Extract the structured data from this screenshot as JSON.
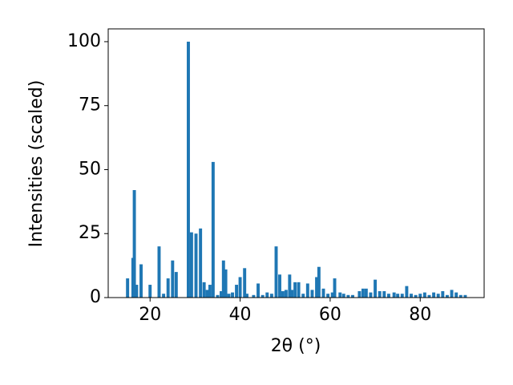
{
  "chart_data": {
    "type": "bar",
    "x_label": "2θ (°)",
    "y_label": "Intensities (scaled)",
    "color": "#1f77b4",
    "x": [
      15,
      16.2,
      16.5,
      17,
      18,
      20,
      22,
      23,
      24,
      25,
      25.8,
      28.5,
      29.2,
      30.2,
      31.2,
      32,
      32.7,
      33.3,
      34,
      35,
      35.8,
      36.3,
      36.8,
      37.5,
      38.3,
      39.2,
      40,
      41,
      41.5,
      43,
      44,
      45,
      46,
      47,
      48,
      48.8,
      49.5,
      50.2,
      51,
      51.5,
      52.2,
      53,
      54,
      55,
      56,
      57,
      57.5,
      58.5,
      59.5,
      60.5,
      61,
      62.2,
      63,
      64,
      65,
      66.5,
      67.3,
      68,
      69,
      70,
      71,
      72,
      73,
      74.2,
      75,
      76,
      77,
      78,
      79,
      80,
      81,
      82,
      83,
      84,
      85,
      86,
      87,
      88,
      89,
      90
    ],
    "values": [
      7.5,
      15.5,
      42,
      5,
      13,
      5,
      20,
      1.5,
      7.5,
      14.5,
      10,
      100,
      25.5,
      25,
      27,
      6,
      3,
      5,
      53,
      1,
      2.5,
      14.5,
      11,
      1.5,
      2,
      5,
      8,
      11.5,
      1.5,
      1,
      5.5,
      1,
      2,
      1.5,
      20,
      9,
      2.5,
      3,
      9,
      3,
      6,
      6,
      1.5,
      5.5,
      3,
      8,
      12,
      3.5,
      1.5,
      2,
      7.5,
      2,
      1.5,
      1,
      1,
      2.5,
      3.5,
      3.5,
      2,
      7,
      2.5,
      2.5,
      1.5,
      2,
      1.5,
      1.5,
      4.5,
      1.5,
      1,
      1.5,
      2,
      1,
      2,
      1.5,
      2.5,
      1,
      3,
      2,
      1,
      1
    ],
    "xlim": [
      10.7,
      94.2
    ],
    "ylim": [
      0,
      105
    ],
    "xticks": [
      20,
      40,
      60,
      80
    ],
    "yticks": [
      0,
      25,
      50,
      75,
      100
    ]
  }
}
